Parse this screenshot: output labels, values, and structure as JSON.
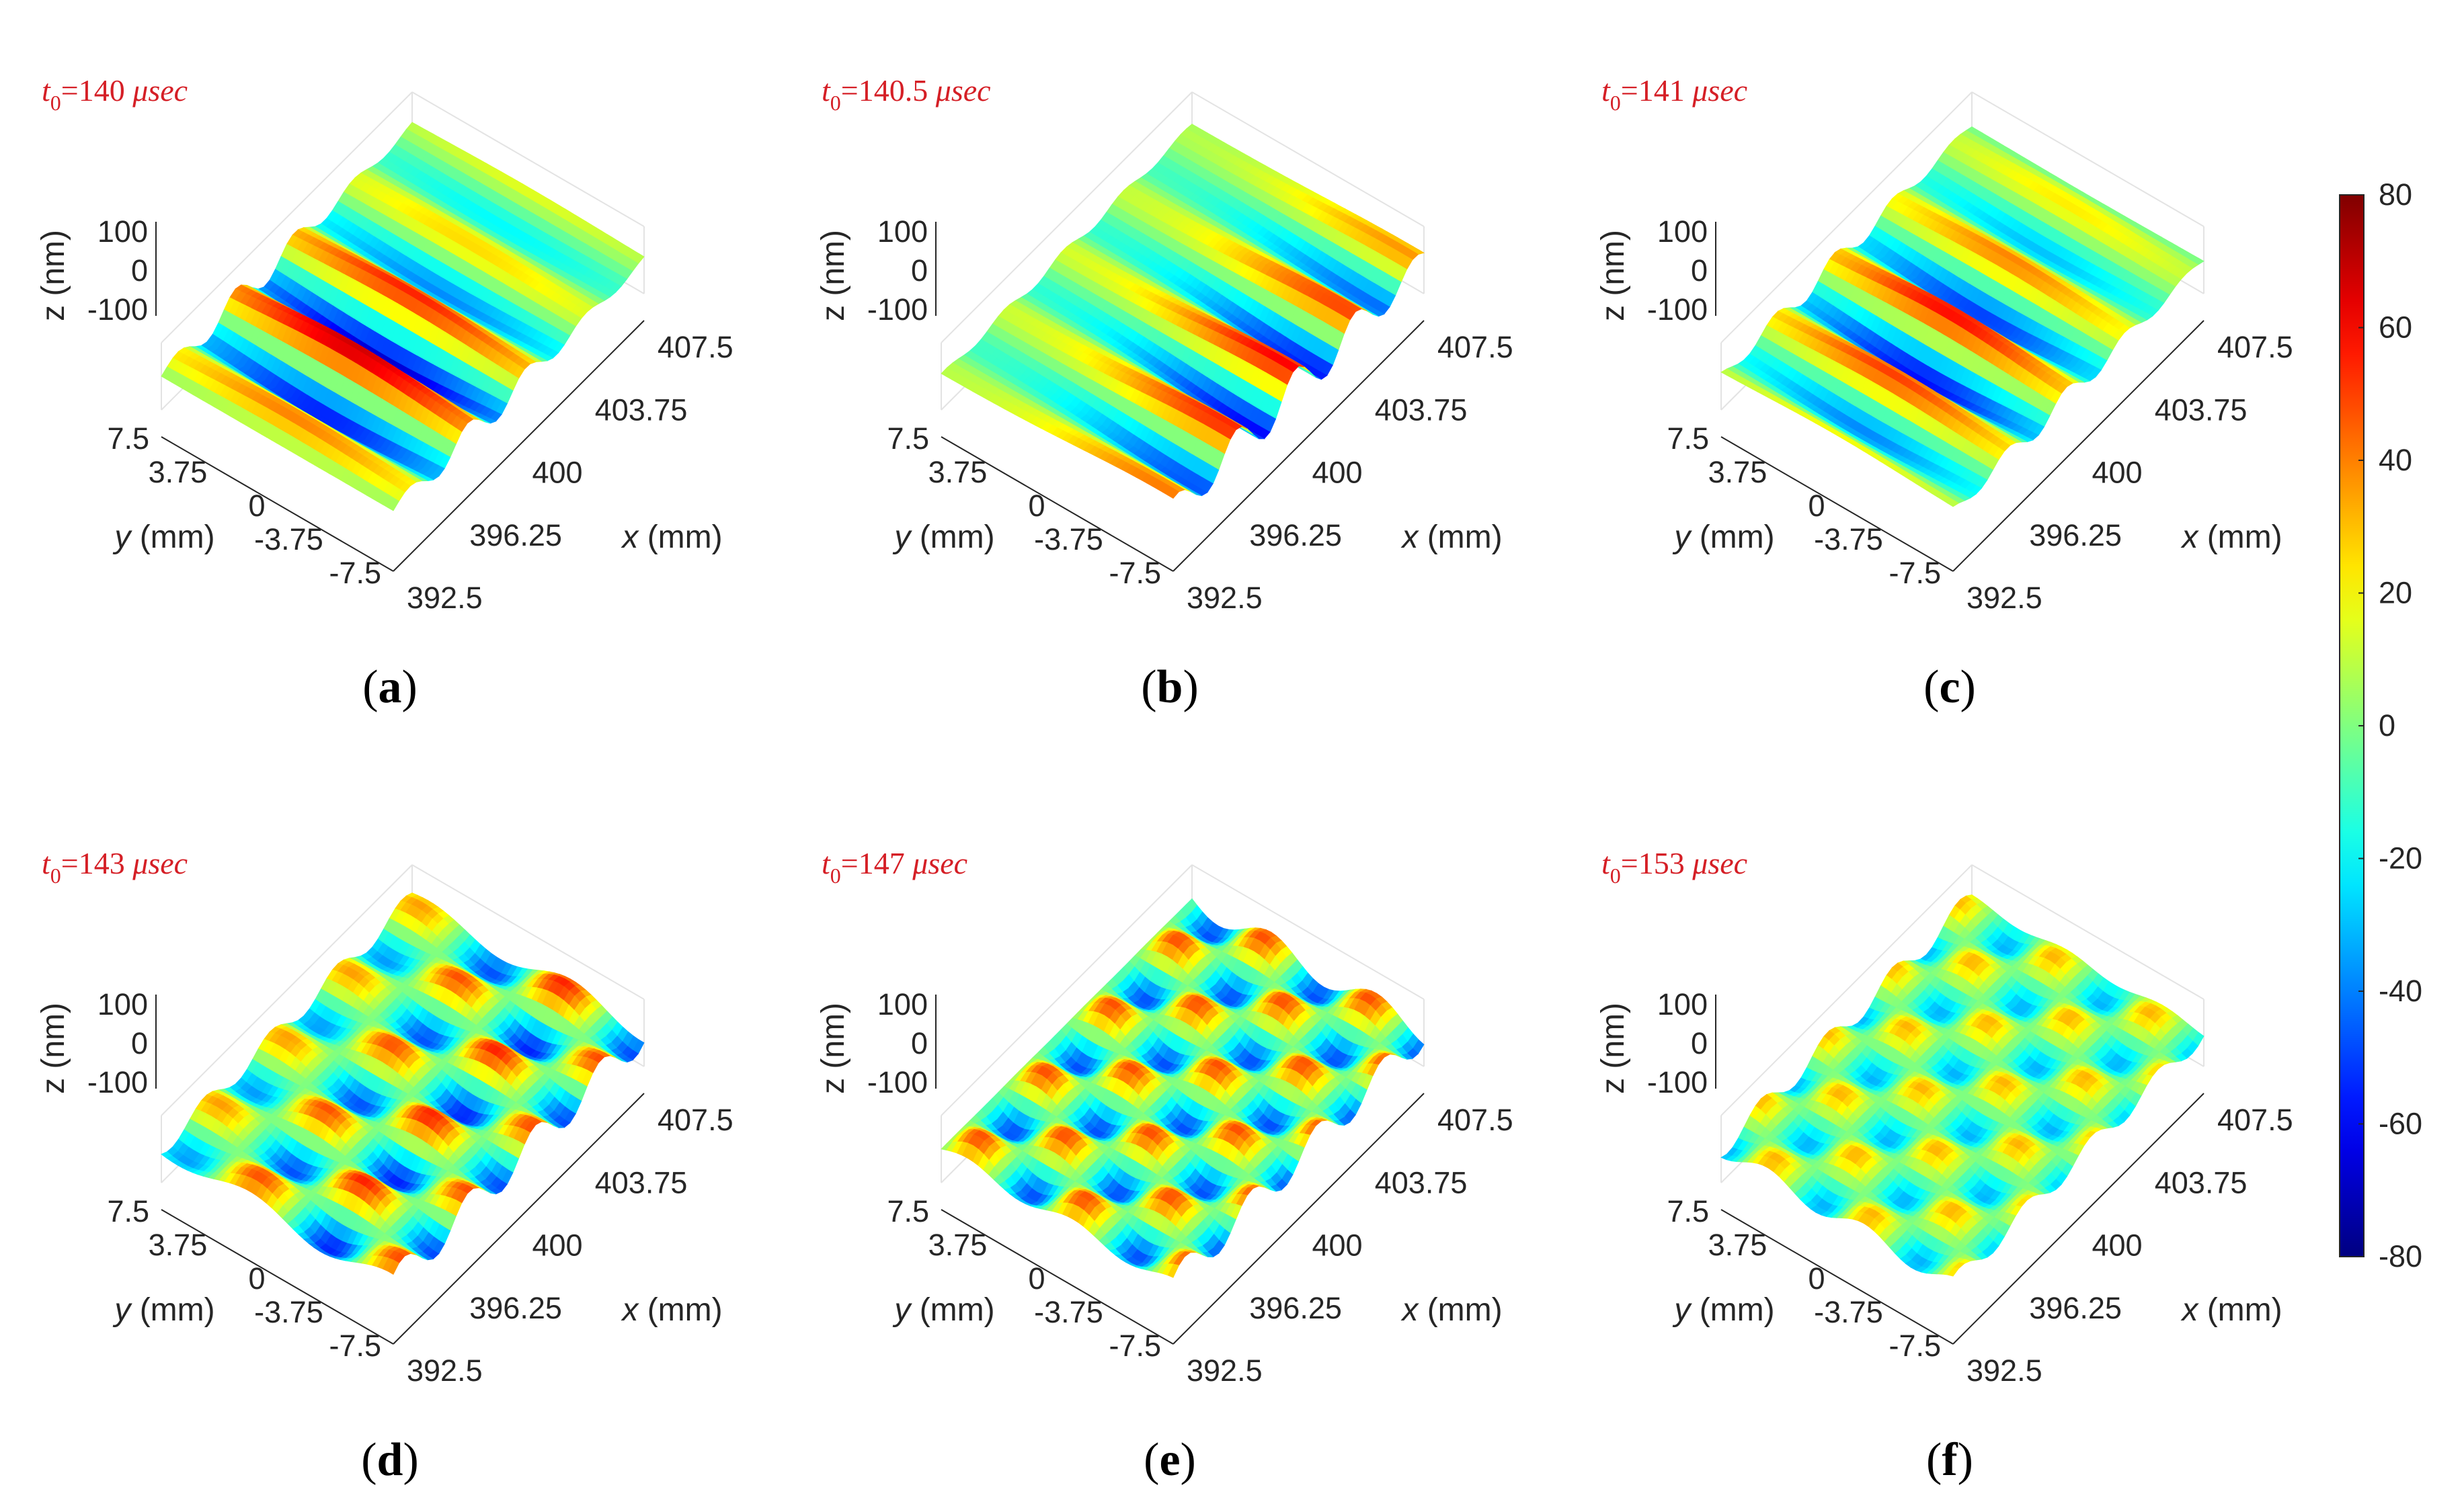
{
  "figure": {
    "colors": {
      "time_label": "#d51f26"
    },
    "colormap": "jet",
    "colorbar": {
      "min": -80,
      "max": 80,
      "ticks": [
        "80",
        "60",
        "40",
        "20",
        "0",
        "-20",
        "-40",
        "-60",
        "-80"
      ]
    }
  },
  "chart_data": [
    {
      "type": "surface3d",
      "panel_label": "(a)",
      "time_var": "t",
      "time_sub": "0",
      "time_value": "=140 ",
      "time_unit": "μsec",
      "pattern": "plane-wave bands along y, strongest near center",
      "zlabel": "z (nm)",
      "ylabel": "y (mm)",
      "xlabel": "x (mm)",
      "zticks": [
        "100",
        "0",
        "-100"
      ],
      "yticks": [
        "7.5",
        "3.75",
        "0",
        "-3.75",
        "-7.5"
      ],
      "xticks": [
        "392.5",
        "396.25",
        "400",
        "403.75",
        "407.5"
      ],
      "zlim": [
        -100,
        100
      ],
      "ylim": [
        -7.5,
        7.5
      ],
      "xlim": [
        392.5,
        407.5
      ]
    },
    {
      "type": "surface3d",
      "panel_label": "(b)",
      "time_var": "t",
      "time_sub": "0",
      "time_value": "=140.5 ",
      "time_unit": "μsec",
      "pattern": "bands with peaks at back edge",
      "zlabel": "z (nm)",
      "ylabel": "y (mm)",
      "xlabel": "x (mm)",
      "zticks": [
        "100",
        "0",
        "-100"
      ],
      "yticks": [
        "7.5",
        "3.75",
        "0",
        "-3.75",
        "-7.5"
      ],
      "xticks": [
        "392.5",
        "396.25",
        "400",
        "403.75",
        "407.5"
      ],
      "zlim": [
        -100,
        100
      ],
      "ylim": [
        -7.5,
        7.5
      ],
      "xlim": [
        392.5,
        407.5
      ]
    },
    {
      "type": "surface3d",
      "panel_label": "(c)",
      "time_var": "t",
      "time_sub": "0",
      "time_value": "=141 ",
      "time_unit": "μsec",
      "pattern": "bands with central lobe",
      "zlabel": "z (nm)",
      "ylabel": "y (mm)",
      "xlabel": "x (mm)",
      "zticks": [
        "100",
        "0",
        "-100"
      ],
      "yticks": [
        "7.5",
        "3.75",
        "0",
        "-3.75",
        "-7.5"
      ],
      "xticks": [
        "392.5",
        "396.25",
        "400",
        "403.75",
        "407.5"
      ],
      "zlim": [
        -100,
        100
      ],
      "ylim": [
        -7.5,
        7.5
      ],
      "xlim": [
        392.5,
        407.5
      ]
    },
    {
      "type": "surface3d",
      "panel_label": "(d)",
      "time_var": "t",
      "time_sub": "0",
      "time_value": "=143 ",
      "time_unit": "μsec",
      "pattern": "modulated standing-wave pattern",
      "zlabel": "z (nm)",
      "ylabel": "y (mm)",
      "xlabel": "x (mm)",
      "zticks": [
        "100",
        "0",
        "-100"
      ],
      "yticks": [
        "7.5",
        "3.75",
        "0",
        "-3.75",
        "-7.5"
      ],
      "xticks": [
        "392.5",
        "396.25",
        "400",
        "403.75",
        "407.5"
      ],
      "zlim": [
        -100,
        100
      ],
      "ylim": [
        -7.5,
        7.5
      ],
      "xlim": [
        392.5,
        407.5
      ]
    },
    {
      "type": "surface3d",
      "panel_label": "(e)",
      "time_var": "t",
      "time_sub": "0",
      "time_value": "=147 ",
      "time_unit": "μsec",
      "pattern": "checkerboard lobes",
      "zlabel": "z (nm)",
      "ylabel": "y (mm)",
      "xlabel": "x (mm)",
      "zticks": [
        "100",
        "0",
        "-100"
      ],
      "yticks": [
        "7.5",
        "3.75",
        "0",
        "-3.75",
        "-7.5"
      ],
      "xticks": [
        "392.5",
        "396.25",
        "400",
        "403.75",
        "407.5"
      ],
      "zlim": [
        -100,
        100
      ],
      "ylim": [
        -7.5,
        7.5
      ],
      "xlim": [
        392.5,
        407.5
      ]
    },
    {
      "type": "surface3d",
      "panel_label": "(f)",
      "time_var": "t",
      "time_sub": "0",
      "time_value": "=153 ",
      "time_unit": "μsec",
      "pattern": "weaker checkerboard lobes",
      "zlabel": "z (nm)",
      "ylabel": "y (mm)",
      "xlabel": "x (mm)",
      "zticks": [
        "100",
        "0",
        "-100"
      ],
      "yticks": [
        "7.5",
        "3.75",
        "0",
        "-3.75",
        "-7.5"
      ],
      "xticks": [
        "392.5",
        "396.25",
        "400",
        "403.75",
        "407.5"
      ],
      "zlim": [
        -100,
        100
      ],
      "ylim": [
        -7.5,
        7.5
      ],
      "xlim": [
        392.5,
        407.5
      ]
    }
  ]
}
